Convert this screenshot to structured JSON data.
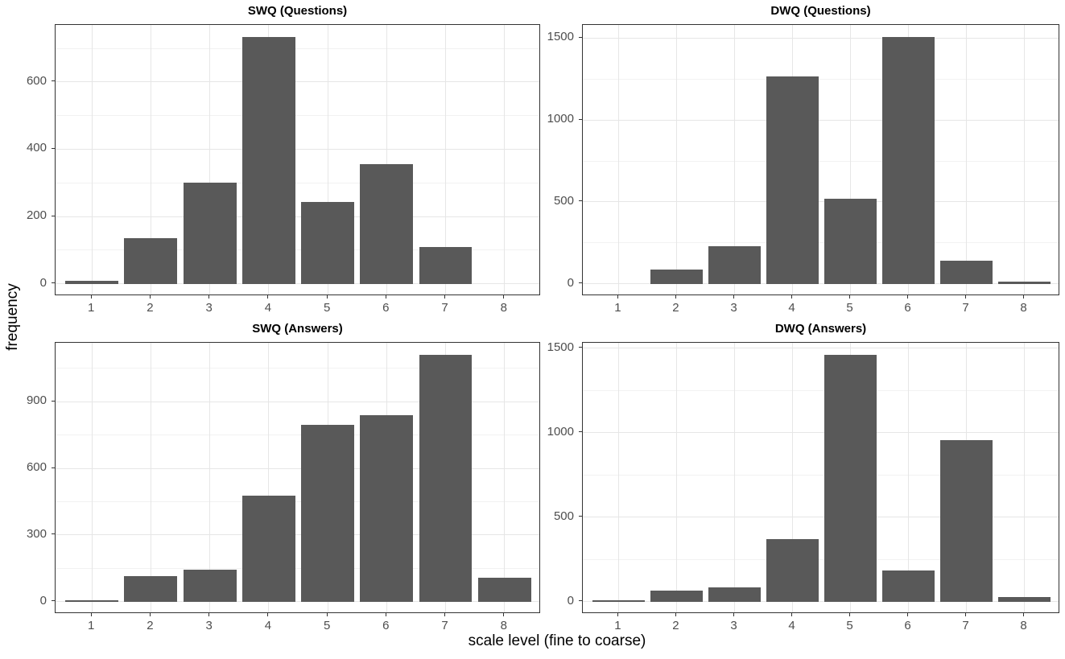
{
  "figure": {
    "y_axis_title": "frequency",
    "x_axis_title": "scale level (fine to coarse)",
    "background_color": "#ffffff",
    "bar_color": "#595959",
    "panel_border_color": "#333333",
    "grid_major_color": "#e6e6e6",
    "grid_minor_color": "#f2f2f2",
    "tick_label_color": "#4d4d4d",
    "title_color": "#000000"
  },
  "chart_data": [
    {
      "type": "bar",
      "title": "SWQ (Questions)",
      "categories": [
        1,
        2,
        3,
        4,
        5,
        6,
        7,
        8
      ],
      "values": [
        8,
        135,
        300,
        733,
        243,
        356,
        110,
        0
      ],
      "xlabel": "scale level (fine to coarse)",
      "ylabel": "frequency",
      "y_ticks": [
        0,
        200,
        400,
        600
      ],
      "y_minor_gridlines": [
        100,
        300,
        500,
        700
      ],
      "ylim": [
        0,
        770
      ],
      "grid": true,
      "legend": false
    },
    {
      "type": "bar",
      "title": "DWQ (Questions)",
      "categories": [
        1,
        2,
        3,
        4,
        5,
        6,
        7,
        8
      ],
      "values": [
        0,
        85,
        228,
        1265,
        520,
        1505,
        140,
        12
      ],
      "xlabel": "scale level (fine to coarse)",
      "ylabel": "frequency",
      "y_ticks": [
        0,
        500,
        1000,
        1500
      ],
      "y_minor_gridlines": [
        250,
        750,
        1250
      ],
      "ylim": [
        0,
        1580
      ],
      "grid": true,
      "legend": false
    },
    {
      "type": "bar",
      "title": "SWQ (Answers)",
      "categories": [
        1,
        2,
        3,
        4,
        5,
        6,
        7,
        8
      ],
      "values": [
        7,
        116,
        143,
        478,
        795,
        840,
        1110,
        108
      ],
      "xlabel": "scale level (fine to coarse)",
      "ylabel": "frequency",
      "y_ticks": [
        0,
        300,
        600,
        900
      ],
      "y_minor_gridlines": [
        150,
        450,
        750,
        1050
      ],
      "ylim": [
        0,
        1166
      ],
      "grid": true,
      "legend": false
    },
    {
      "type": "bar",
      "title": "DWQ (Answers)",
      "categories": [
        1,
        2,
        3,
        4,
        5,
        6,
        7,
        8
      ],
      "values": [
        8,
        65,
        85,
        368,
        1458,
        185,
        955,
        25
      ],
      "xlabel": "scale level (fine to coarse)",
      "ylabel": "frequency",
      "y_ticks": [
        0,
        500,
        1000,
        1500
      ],
      "y_minor_gridlines": [
        250,
        750,
        1250
      ],
      "ylim": [
        0,
        1531
      ],
      "grid": true,
      "legend": false
    }
  ]
}
